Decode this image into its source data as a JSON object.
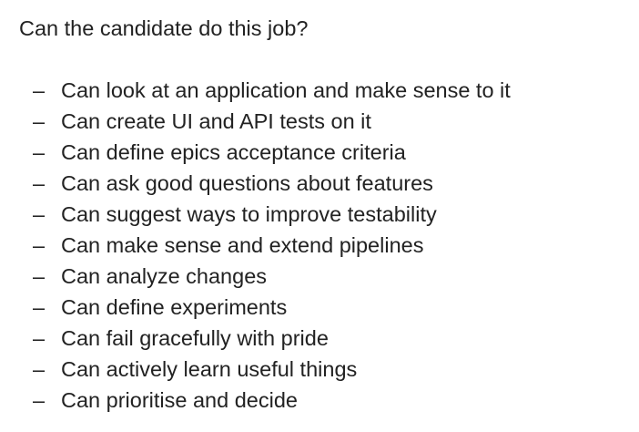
{
  "document": {
    "heading": "Can the candidate do this job?",
    "bullet_marker": "–",
    "items": [
      "Can look at an application and make sense to it",
      "Can create UI and API tests on it",
      "Can define epics acceptance criteria",
      "Can ask good questions about features",
      "Can suggest ways to improve testability",
      "Can make sense and extend pipelines",
      "Can analyze changes",
      "Can define experiments",
      "Can fail gracefully with pride",
      "Can actively learn useful things",
      "Can prioritise and decide"
    ]
  }
}
